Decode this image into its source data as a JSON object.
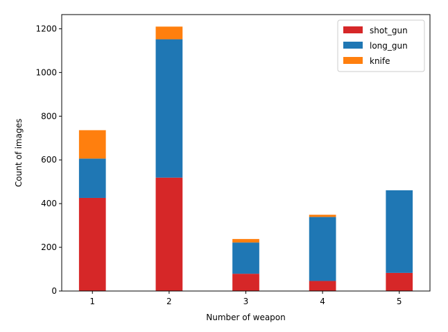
{
  "chart_data": {
    "type": "bar",
    "stacked": true,
    "title": "",
    "xlabel": "Number of weapon",
    "ylabel": "Count of images",
    "categories": [
      "1",
      "2",
      "3",
      "4",
      "5"
    ],
    "ylim": [
      0,
      1265
    ],
    "yticks": [
      0,
      200,
      400,
      600,
      800,
      1000,
      1200
    ],
    "grid": false,
    "legend_position": "top-right",
    "series": [
      {
        "name": "shot_gun",
        "color": "#d62728",
        "values": [
          426,
          519,
          79,
          46,
          83
        ]
      },
      {
        "name": "long_gun",
        "color": "#1f77b4",
        "values": [
          180,
          633,
          143,
          293,
          378
        ]
      },
      {
        "name": "knife",
        "color": "#ff7f0e",
        "values": [
          130,
          58,
          16,
          10,
          0
        ]
      }
    ]
  }
}
